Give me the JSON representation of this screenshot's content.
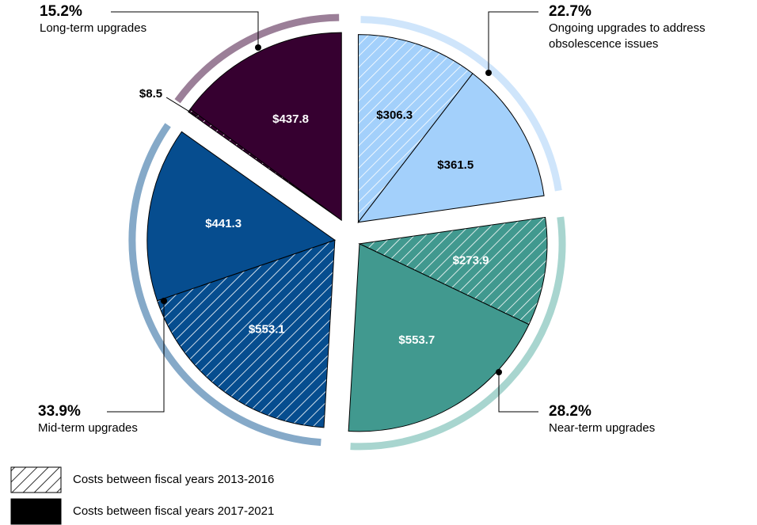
{
  "chart_data": {
    "type": "pie",
    "series": [
      {
        "name": "Costs between fiscal years 2013-2016",
        "pattern": "hatch"
      },
      {
        "name": "Costs between fiscal years 2017-2021",
        "pattern": "solid"
      }
    ],
    "groups": [
      {
        "name": "Ongoing upgrades to address obsolescence issues",
        "share": 22.7,
        "share_label": "22.7%",
        "color": "#a3d0fb",
        "ring_color": "#cfe5fb",
        "text_color": "#000000",
        "values": [
          306.3,
          361.5
        ],
        "value_labels": [
          "$306.3",
          "$361.5"
        ]
      },
      {
        "name": "Near-term upgrades",
        "share": 28.2,
        "share_label": "28.2%",
        "color": "#41998f",
        "ring_color": "#a8d5cf",
        "text_color": "#ffffff",
        "values": [
          273.9,
          553.7
        ],
        "value_labels": [
          "$273.9",
          "$553.7"
        ]
      },
      {
        "name": "Mid-term upgrades",
        "share": 33.9,
        "share_label": "33.9%",
        "color": "#064d8f",
        "ring_color": "#85a9c8",
        "text_color": "#ffffff",
        "values": [
          553.1,
          441.3
        ],
        "value_labels": [
          "$553.1",
          "$441.3"
        ]
      },
      {
        "name": "Long-term upgrades",
        "share": 15.2,
        "share_label": "15.2%",
        "color": "#360030",
        "ring_color": "#9b7f98",
        "text_color": "#ffffff",
        "values": [
          8.5,
          437.8
        ],
        "value_labels": [
          "$8.5",
          "$437.8"
        ]
      }
    ]
  }
}
